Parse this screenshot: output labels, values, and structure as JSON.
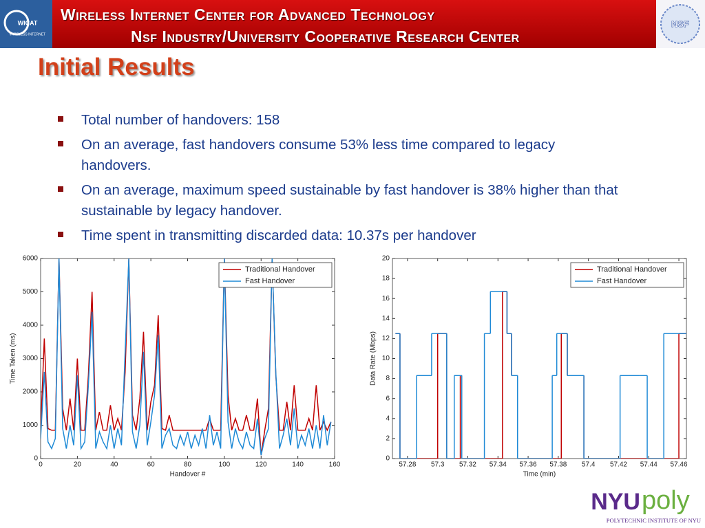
{
  "header": {
    "line1": "Wireless Internet Center for Advanced Technology",
    "line2": "Nsf Industry/University Cooperative Research Center"
  },
  "logos": {
    "wicat": "WICAT",
    "wicat_sub": "WIRELESS INTERNET",
    "nsf": "NSF",
    "nyu": "NYU",
    "poly": "poly",
    "nyu_sub": "POLYTECHNIC INSTITUTE OF NYU"
  },
  "title": "Initial Results",
  "bullets": [
    "Total number of handovers: 158",
    "On an average, fast handovers consume 53% less time compared to legacy handovers.",
    "On an average, maximum speed sustainable by fast handover is 38% higher than that sustainable by legacy handover.",
    "Time spent in transmitting discarded data: 10.37s per handover"
  ],
  "chart_data": [
    {
      "type": "line",
      "x_label": "Handover #",
      "y_label": "Time Taken (ms)",
      "xlim": [
        0,
        160
      ],
      "xticks": [
        0,
        20,
        40,
        60,
        80,
        100,
        120,
        140,
        160
      ],
      "ylim": [
        0,
        6000
      ],
      "yticks": [
        0,
        1000,
        2000,
        3000,
        4000,
        5000,
        6000
      ],
      "legend": "upper right",
      "x": [
        0,
        2,
        4,
        6,
        8,
        10,
        12,
        14,
        16,
        18,
        20,
        22,
        24,
        26,
        28,
        30,
        32,
        34,
        36,
        38,
        40,
        42,
        44,
        46,
        48,
        50,
        52,
        54,
        56,
        58,
        60,
        62,
        64,
        66,
        68,
        70,
        72,
        74,
        76,
        78,
        80,
        82,
        84,
        86,
        88,
        90,
        92,
        94,
        96,
        98,
        100,
        102,
        104,
        106,
        108,
        110,
        112,
        114,
        116,
        118,
        120,
        122,
        124,
        126,
        128,
        130,
        132,
        134,
        136,
        138,
        140,
        142,
        144,
        146,
        148,
        150,
        152,
        154,
        156,
        158
      ],
      "series": [
        {
          "name": "Traditional Handover",
          "color": "#c00000",
          "values": [
            850,
            3600,
            900,
            850,
            850,
            6000,
            1500,
            850,
            1800,
            850,
            3000,
            850,
            850,
            2500,
            5000,
            850,
            1400,
            850,
            850,
            1600,
            850,
            1200,
            850,
            2600,
            6000,
            1300,
            850,
            1800,
            3800,
            850,
            1700,
            2200,
            4300,
            900,
            850,
            1300,
            850,
            850,
            850,
            850,
            850,
            850,
            850,
            850,
            850,
            850,
            1200,
            850,
            850,
            850,
            6000,
            1900,
            850,
            1200,
            850,
            850,
            1300,
            850,
            850,
            1800,
            100,
            850,
            1500,
            6000,
            2500,
            850,
            850,
            1700,
            850,
            2200,
            850,
            850,
            850,
            1200,
            850,
            2200,
            850,
            1100,
            850,
            1100
          ]
        },
        {
          "name": "Fast Handover",
          "color": "#1f8ad6",
          "values": [
            600,
            2600,
            500,
            300,
            600,
            6000,
            900,
            300,
            1000,
            400,
            2500,
            300,
            500,
            2200,
            4400,
            300,
            800,
            500,
            300,
            1000,
            300,
            900,
            400,
            3200,
            6000,
            800,
            300,
            1000,
            3200,
            400,
            1100,
            1900,
            3700,
            300,
            700,
            900,
            400,
            300,
            700,
            400,
            800,
            300,
            700,
            400,
            900,
            300,
            1300,
            400,
            800,
            300,
            6000,
            1100,
            300,
            900,
            500,
            300,
            800,
            400,
            300,
            1200,
            100,
            600,
            900,
            6000,
            2600,
            300,
            700,
            1200,
            400,
            1500,
            300,
            700,
            400,
            900,
            300,
            1000,
            300,
            1300,
            400,
            1100
          ]
        }
      ]
    },
    {
      "type": "step",
      "x_label": "Time (min)",
      "y_label": "Data Rate (Mbps)",
      "xlim": [
        57.27,
        57.465
      ],
      "xticks": [
        57.28,
        57.3,
        57.32,
        57.34,
        57.36,
        57.38,
        57.4,
        57.42,
        57.44,
        57.46
      ],
      "ylim": [
        0,
        20
      ],
      "yticks": [
        0,
        2,
        4,
        6,
        8,
        10,
        12,
        14,
        16,
        18,
        20
      ],
      "legend": "upper right",
      "x": [
        57.272,
        57.275,
        57.286,
        57.296,
        57.3,
        57.306,
        57.311,
        57.315,
        57.316,
        57.331,
        57.335,
        57.343,
        57.346,
        57.349,
        57.353,
        57.376,
        57.379,
        57.382,
        57.386,
        57.397,
        57.421,
        57.434,
        57.439,
        57.45,
        57.46,
        57.465
      ],
      "series": [
        {
          "name": "Traditional Handover",
          "color": "#c00000",
          "values": [
            12.5,
            0,
            0,
            0,
            12.5,
            0,
            0,
            8.3,
            0,
            0,
            0,
            16.7,
            12.5,
            8.3,
            0,
            0,
            0,
            12.5,
            8.3,
            0,
            0,
            0,
            0,
            0,
            12.5,
            12.5
          ]
        },
        {
          "name": "Fast Handover",
          "color": "#1f8ad6",
          "values": [
            12.5,
            0,
            8.3,
            12.5,
            12.5,
            0,
            8.3,
            8.3,
            0,
            12.5,
            16.7,
            16.7,
            12.5,
            8.3,
            0,
            8.3,
            12.5,
            12.5,
            8.3,
            0,
            8.3,
            8.3,
            0,
            12.5,
            12.5,
            12.5
          ]
        }
      ]
    }
  ]
}
